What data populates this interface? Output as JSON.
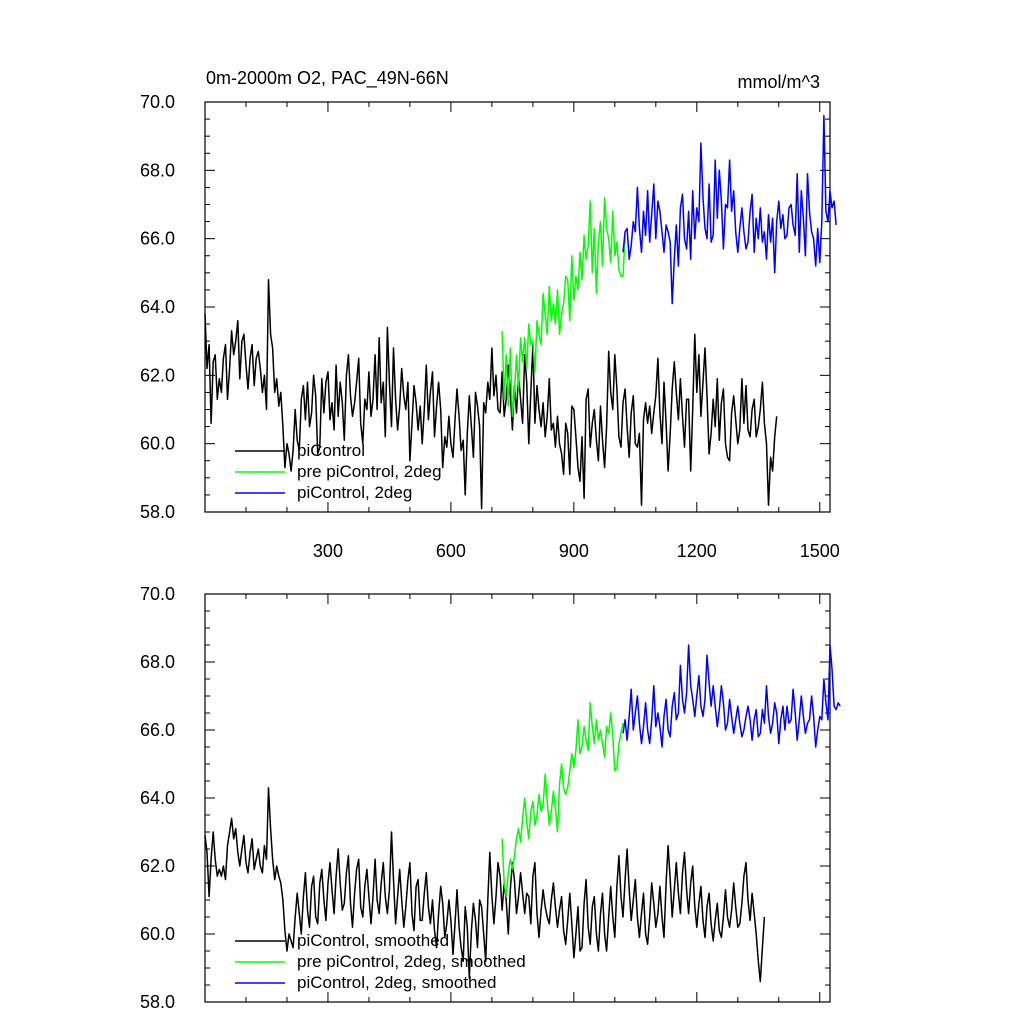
{
  "chart_data": [
    {
      "type": "line",
      "title": "0m-2000m O2, PAC_49N-66N",
      "units": "mmol/m^3",
      "ylim": [
        58.0,
        70.0
      ],
      "xlim": [
        0,
        1525
      ],
      "yticks": [
        "58.0",
        "60.0",
        "62.0",
        "64.0",
        "66.0",
        "68.0",
        "70.0"
      ],
      "xticks": [
        "300",
        "600",
        "900",
        "1200",
        "1500"
      ],
      "series": [
        {
          "name": "piControl",
          "color": "#000000",
          "x_step": 5,
          "x_start": 0,
          "values": [
            63.8,
            62.2,
            62.9,
            60.6,
            62.4,
            62.6,
            61.3,
            61.9,
            61.5,
            62.5,
            62.9,
            61.3,
            62.2,
            63.3,
            62.6,
            63.0,
            63.6,
            61.9,
            63.0,
            63.2,
            62.3,
            61.6,
            62.5,
            62.9,
            61.7,
            62.5,
            62.7,
            62.2,
            61.5,
            62.0,
            61.0,
            64.8,
            63.2,
            62.8,
            61.5,
            61.9,
            61.1,
            61.5,
            60.5,
            59.3,
            60.0,
            59.7,
            59.2,
            59.8,
            61.0,
            60.1,
            59.8,
            61.3,
            61.7,
            60.7,
            61.8,
            60.5,
            60.9,
            62.0,
            61.4,
            59.7,
            59.9,
            61.9,
            60.9,
            61.8,
            62.1,
            60.7,
            61.2,
            60.4,
            62.3,
            60.8,
            61.8,
            61.2,
            60.1,
            62.0,
            62.6,
            61.4,
            60.8,
            61.2,
            61.8,
            62.5,
            60.6,
            60.0,
            61.3,
            61.0,
            62.1,
            60.8,
            61.3,
            62.6,
            61.0,
            63.1,
            61.2,
            61.8,
            60.2,
            63.4,
            61.8,
            60.5,
            62.8,
            61.3,
            60.4,
            61.1,
            62.2,
            61.4,
            61.0,
            61.8,
            59.5,
            60.6,
            61.7,
            61.2,
            60.4,
            61.1,
            60.0,
            61.0,
            62.3,
            60.7,
            61.5,
            62.1,
            60.2,
            61.1,
            61.8,
            61.0,
            59.3,
            60.2,
            59.9,
            60.8,
            60.0,
            59.6,
            60.7,
            61.6,
            60.8,
            59.8,
            60.1,
            58.5,
            60.3,
            61.4,
            60.5,
            59.6,
            61.5,
            61.1,
            60.5,
            58.1,
            61.2,
            60.9,
            61.8,
            61.3,
            62.8,
            61.4,
            62.0,
            61.0,
            60.9,
            62.1,
            60.8,
            61.3,
            62.3,
            61.5,
            60.4,
            61.7,
            60.9,
            62.0,
            61.3,
            60.6,
            62.6,
            61.8,
            60.0,
            61.5,
            62.9,
            60.6,
            61.7,
            61.0,
            60.5,
            61.2,
            60.2,
            60.8,
            61.9,
            60.4,
            60.6,
            59.9,
            60.8,
            60.0,
            59.7,
            59.1,
            60.6,
            60.3,
            59.1,
            61.1,
            61.0,
            60.2,
            59.3,
            58.9,
            60.2,
            58.4,
            61.3,
            61.6,
            59.9,
            60.6,
            61.0,
            60.1,
            59.5,
            61.1,
            60.1,
            59.3,
            60.5,
            62.7,
            61.5,
            61.0,
            62.6,
            61.6,
            60.2,
            59.9,
            61.2,
            61.6,
            60.5,
            59.6,
            60.9,
            61.4,
            60.0,
            59.9,
            60.3,
            58.2,
            60.7,
            61.2,
            60.6,
            61.1,
            60.3,
            60.9,
            61.4,
            62.5,
            60.9,
            60.0,
            61.8,
            60.6,
            59.2,
            60.3,
            61.6,
            62.4,
            61.5,
            60.7,
            61.9,
            60.8,
            59.9,
            61.3,
            61.3,
            59.2,
            61.0,
            63.2,
            61.5,
            62.6,
            60.8,
            61.8,
            62.8,
            61.4,
            59.7,
            60.3,
            61.3,
            60.5,
            61.9,
            60.1,
            61.2,
            61.6,
            60.0,
            59.6,
            59.5,
            60.9,
            61.4,
            60.7,
            60.0,
            60.4,
            61.9,
            60.6,
            61.7,
            60.4,
            60.2,
            61.0,
            61.3,
            60.2,
            60.5,
            61.0,
            61.8,
            60.6,
            60.0,
            58.2,
            59.6,
            59.2,
            60.2,
            60.8
          ]
        },
        {
          "name": "pre piControl, 2deg",
          "color": "#00ff00",
          "x_step": 5,
          "x_start": 725,
          "values": [
            63.3,
            61.3,
            62.6,
            61.1,
            62.8,
            60.8,
            61.5,
            62.6,
            61.6,
            63.1,
            62.4,
            63.1,
            62.2,
            63.5,
            62.9,
            63.0,
            62.1,
            63.6,
            63.2,
            62.9,
            64.4,
            63.8,
            63.2,
            64.6,
            63.6,
            64.1,
            63.5,
            64.5,
            63.2,
            63.8,
            64.1,
            64.9,
            64.8,
            63.6,
            65.5,
            64.2,
            64.9,
            64.5,
            65.6,
            64.8,
            66.1,
            65.4,
            65.8,
            67.1,
            65.0,
            66.3,
            64.4,
            65.9,
            66.5,
            65.2,
            67.2,
            66.3,
            66.0,
            65.3,
            66.8,
            65.5,
            65.9,
            65.1,
            64.9,
            64.9,
            66.1
          ]
        },
        {
          "name": "piControl, 2deg",
          "color": "#0000ff",
          "x_step": 5,
          "x_start": 1020,
          "values": [
            65.6,
            66.2,
            66.3,
            65.4,
            65.8,
            66.5,
            66.2,
            67.5,
            66.3,
            65.6,
            66.8,
            66.1,
            67.4,
            65.9,
            66.7,
            67.6,
            66.0,
            67.1,
            66.8,
            66.2,
            65.6,
            66.4,
            66.2,
            65.9,
            64.1,
            65.4,
            66.4,
            65.2,
            66.9,
            67.3,
            66.0,
            65.7,
            66.8,
            65.4,
            67.4,
            66.0,
            66.9,
            66.5,
            68.8,
            67.2,
            66.3,
            66.0,
            67.6,
            65.9,
            66.1,
            68.3,
            66.6,
            68.0,
            67.1,
            65.7,
            67.0,
            66.9,
            68.3,
            66.8,
            67.4,
            66.2,
            65.6,
            66.3,
            66.9,
            66.2,
            65.7,
            65.9,
            66.8,
            67.3,
            65.6,
            66.6,
            66.0,
            66.9,
            65.9,
            66.2,
            65.4,
            66.7,
            65.9,
            66.6,
            65.0,
            66.5,
            67.1,
            66.3,
            66.7,
            66.0,
            66.1,
            66.9,
            67.0,
            66.4,
            66.1,
            67.9,
            65.6,
            67.4,
            66.6,
            65.5,
            67.9,
            66.8,
            66.2,
            66.0,
            65.2,
            66.3,
            65.3,
            66.5,
            69.6,
            66.8,
            66.5,
            67.4,
            66.9,
            67.1,
            66.4
          ]
        }
      ],
      "legend": {
        "position": "bottom-left"
      }
    },
    {
      "type": "line",
      "title": "",
      "units": "",
      "ylim": [
        58.0,
        70.0
      ],
      "xlim": [
        0,
        1525
      ],
      "yticks": [
        "58.0",
        "60.0",
        "62.0",
        "64.0",
        "66.0",
        "68.0",
        "70.0"
      ],
      "xticks": [],
      "series": [
        {
          "name": "piControl, smoothed",
          "color": "#000000",
          "x_step": 5,
          "x_start": 0,
          "values": [
            62.9,
            62.4,
            61.1,
            62.2,
            63.0,
            62.2,
            61.7,
            61.9,
            61.7,
            62.0,
            61.6,
            62.6,
            63.0,
            63.4,
            62.8,
            63.1,
            62.4,
            62.0,
            62.5,
            62.9,
            62.1,
            61.8,
            62.4,
            62.8,
            61.9,
            62.2,
            62.5,
            62.0,
            61.8,
            62.6,
            62.2,
            64.3,
            63.1,
            62.2,
            61.6,
            62.0,
            61.7,
            61.5,
            61.0,
            60.1,
            59.5,
            60.0,
            59.8,
            59.6,
            60.5,
            61.2,
            60.6,
            60.0,
            61.1,
            61.8,
            60.7,
            60.2,
            61.4,
            61.7,
            60.5,
            60.3,
            61.5,
            61.9,
            61.0,
            60.4,
            61.5,
            62.1,
            61.3,
            60.6,
            61.7,
            62.5,
            61.5,
            60.7,
            60.9,
            61.8,
            62.3,
            60.9,
            60.2,
            61.2,
            61.9,
            62.2,
            60.8,
            60.5,
            61.4,
            61.9,
            61.1,
            60.3,
            61.1,
            62.2,
            61.0,
            60.6,
            61.5,
            62.1,
            61.1,
            60.6,
            61.3,
            63.0,
            61.6,
            60.3,
            61.1,
            61.9,
            61.0,
            60.2,
            60.8,
            61.6,
            62.1,
            60.6,
            60.1,
            61.4,
            61.6,
            60.4,
            60.4,
            61.2,
            61.8,
            60.8,
            60.3,
            61.0,
            60.1,
            59.6,
            60.6,
            61.4,
            60.9,
            59.9,
            60.3,
            61.0,
            60.4,
            59.4,
            60.3,
            61.3,
            60.2,
            59.6,
            59.2,
            60.8,
            60.2,
            58.7,
            60.1,
            60.9,
            60.4,
            59.6,
            61.0,
            60.8,
            60.0,
            59.2,
            61.0,
            62.4,
            61.1,
            60.3,
            61.1,
            62.1,
            61.7,
            60.7,
            61.5,
            61.0,
            60.0,
            61.3,
            62.1,
            61.6,
            60.6,
            61.1,
            61.8,
            61.2,
            60.6,
            61.2,
            61.1,
            60.3,
            61.7,
            62.1,
            60.6,
            59.9,
            60.7,
            61.3,
            60.8,
            60.5,
            60.3,
            61.0,
            61.5,
            60.8,
            60.2,
            60.7,
            61.1,
            60.1,
            59.7,
            60.4,
            61.2,
            60.3,
            59.3,
            60.0,
            60.8,
            59.5,
            59.6,
            60.9,
            61.6,
            60.2,
            59.7,
            60.8,
            61.1,
            60.0,
            59.5,
            60.6,
            61.2,
            60.0,
            59.5,
            60.5,
            61.4,
            60.5,
            59.9,
            61.4,
            62.3,
            61.1,
            60.5,
            61.6,
            62.5,
            61.3,
            60.4,
            61.0,
            61.6,
            60.5,
            59.9,
            60.6,
            61.2,
            60.0,
            59.7,
            60.5,
            61.5,
            60.9,
            60.2,
            60.6,
            61.4,
            60.5,
            59.9,
            61.5,
            62.6,
            61.6,
            60.5,
            61.3,
            62.1,
            61.2,
            60.6,
            61.8,
            62.4,
            61.3,
            60.6,
            61.5,
            62.0,
            60.8,
            60.2,
            60.9,
            61.4,
            60.4,
            59.9,
            60.8,
            61.2,
            60.3,
            59.8,
            60.4,
            60.9,
            60.1,
            59.9,
            60.5,
            61.3,
            60.5,
            60.2,
            60.7,
            61.5,
            60.8,
            60.2,
            60.3,
            60.9,
            61.7,
            62.1,
            61.0,
            60.4,
            61.2,
            60.6,
            60.0,
            59.2,
            58.6,
            59.6,
            60.5
          ]
        },
        {
          "name": "pre piControl, 2deg, smoothed",
          "color": "#00ff00",
          "x_step": 5,
          "x_start": 725,
          "values": [
            62.8,
            61.5,
            61.1,
            61.8,
            62.2,
            61.9,
            62.3,
            62.8,
            63.1,
            62.7,
            63.4,
            64.0,
            63.3,
            62.8,
            63.6,
            63.9,
            63.2,
            63.5,
            64.1,
            63.6,
            63.8,
            64.7,
            63.9,
            63.2,
            63.6,
            64.2,
            63.7,
            63.0,
            64.4,
            65.0,
            64.3,
            64.1,
            64.3,
            64.8,
            65.3,
            64.9,
            65.4,
            66.3,
            65.3,
            65.5,
            66.1,
            65.7,
            65.4,
            66.8,
            66.1,
            65.6,
            66.3,
            65.7,
            66.0,
            65.6,
            65.2,
            66.1,
            65.9,
            66.5,
            65.8,
            64.8,
            64.9,
            65.6,
            65.9,
            66.2
          ]
        },
        {
          "name": "piControl, 2deg, smoothed",
          "color": "#0000ff",
          "x_step": 5,
          "x_start": 1020,
          "values": [
            65.9,
            66.3,
            65.7,
            66.4,
            67.2,
            66.0,
            66.5,
            67.0,
            66.2,
            65.6,
            66.1,
            66.8,
            66.0,
            65.6,
            66.3,
            67.3,
            66.1,
            66.5,
            66.1,
            65.5,
            66.4,
            66.9,
            66.0,
            65.8,
            66.7,
            67.1,
            66.3,
            66.5,
            67.9,
            66.9,
            66.5,
            67.1,
            68.5,
            67.3,
            66.9,
            66.4,
            67.0,
            67.6,
            66.7,
            66.4,
            66.9,
            68.2,
            67.4,
            66.7,
            67.3,
            66.7,
            66.1,
            66.6,
            67.3,
            66.8,
            66.0,
            66.2,
            66.9,
            66.4,
            65.9,
            66.3,
            66.7,
            66.2,
            65.8,
            66.0,
            66.4,
            66.7,
            66.3,
            65.7,
            66.3,
            66.6,
            65.8,
            65.9,
            66.6,
            66.2,
            67.3,
            66.4,
            65.9,
            66.2,
            66.8,
            66.5,
            65.6,
            66.3,
            66.7,
            66.0,
            66.7,
            66.2,
            66.3,
            67.2,
            66.5,
            65.7,
            66.3,
            67.0,
            66.4,
            65.9,
            66.2,
            66.3,
            67.0,
            66.4,
            65.5,
            66.0,
            66.4,
            66.3,
            67.5,
            66.8,
            66.3,
            68.5,
            67.8,
            66.7,
            66.6,
            66.8,
            66.7
          ]
        }
      ],
      "legend": {
        "position": "bottom-left"
      }
    }
  ]
}
